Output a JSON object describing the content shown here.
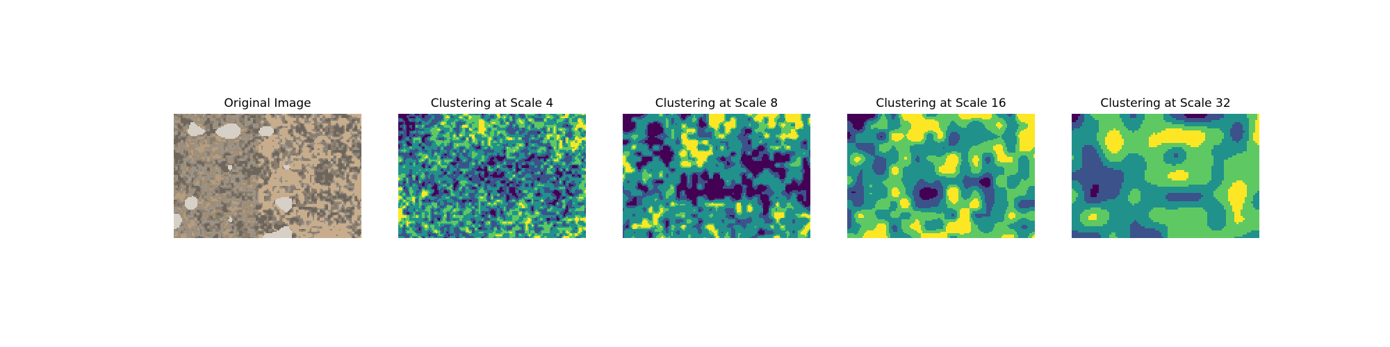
{
  "figure": {
    "panels": [
      {
        "title": "Original Image",
        "kind": "photo"
      },
      {
        "title": "Clustering at Scale 4",
        "kind": "cluster",
        "scale": 4
      },
      {
        "title": "Clustering at Scale 8",
        "kind": "cluster",
        "scale": 8
      },
      {
        "title": "Clustering at Scale 16",
        "kind": "cluster",
        "scale": 16
      },
      {
        "title": "Clustering at Scale 32",
        "kind": "cluster",
        "scale": 32
      }
    ],
    "palette": {
      "cluster_colors": [
        "#440154",
        "#3b528b",
        "#21918c",
        "#5ec962",
        "#fde725"
      ],
      "photo_colors": [
        "#8a7d6e",
        "#a08c74",
        "#b59d80",
        "#c8ad8c",
        "#9a9489",
        "#d6d0c6",
        "#6e665c"
      ]
    }
  }
}
